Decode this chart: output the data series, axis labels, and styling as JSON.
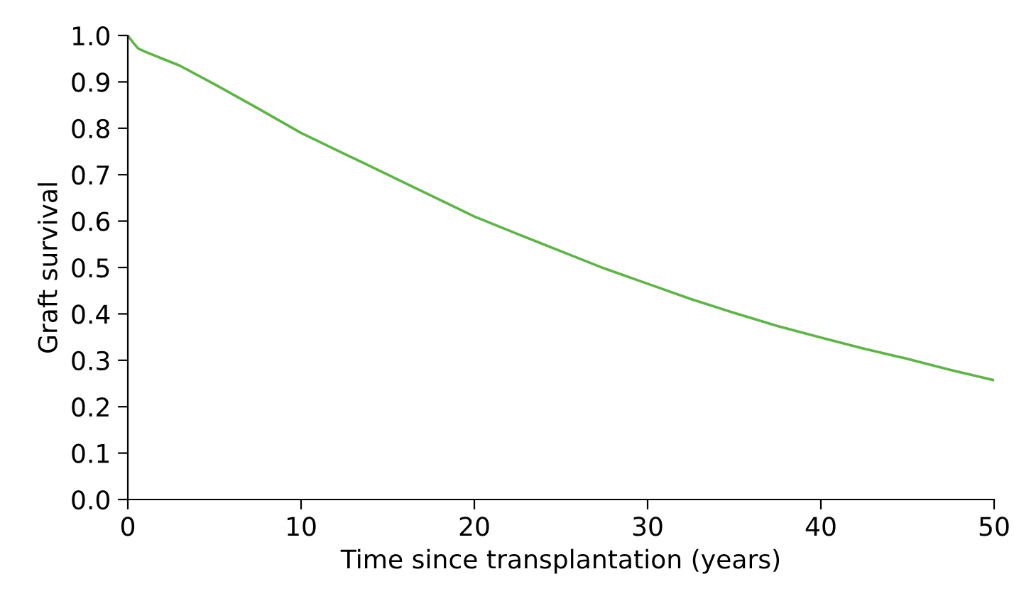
{
  "chart_data": {
    "type": "line",
    "xlabel": "Time since transplantation (years)",
    "ylabel": "Graft survival",
    "x": [
      0,
      0.3,
      0.6,
      1,
      2,
      3,
      5,
      7.5,
      10,
      12.5,
      15,
      17.5,
      20,
      22.5,
      25,
      27.5,
      30,
      32.5,
      35,
      37.5,
      40,
      42.5,
      45,
      47.5,
      50
    ],
    "series": [
      {
        "color": "#5db546",
        "values": [
          1.0,
          0.985,
          0.972,
          0.965,
          0.95,
          0.935,
          0.895,
          0.843,
          0.79,
          0.745,
          0.7,
          0.655,
          0.61,
          0.572,
          0.535,
          0.498,
          0.465,
          0.432,
          0.402,
          0.374,
          0.349,
          0.325,
          0.303,
          0.279,
          0.257
        ]
      }
    ],
    "xlim": [
      0,
      50
    ],
    "ylim": [
      0,
      1.0
    ],
    "xticks": [
      0,
      10,
      20,
      30,
      40,
      50
    ],
    "yticks": [
      {
        "value": 0,
        "label": "0.0"
      },
      {
        "value": 0.1,
        "label": "0.1"
      },
      {
        "value": 0.2,
        "label": "0.2"
      },
      {
        "value": 0.3,
        "label": "0.3"
      },
      {
        "value": 0.4,
        "label": "0.4"
      },
      {
        "value": 0.5,
        "label": "0.5"
      },
      {
        "value": 0.6,
        "label": "0.6"
      },
      {
        "value": 0.7,
        "label": "0.7"
      },
      {
        "value": 0.8,
        "label": "0.8"
      },
      {
        "value": 0.9,
        "label": "0.9"
      },
      {
        "value": 1.0,
        "label": "1.0"
      }
    ],
    "grid": false,
    "legend": false,
    "marker": "none",
    "line_style": "solid"
  }
}
